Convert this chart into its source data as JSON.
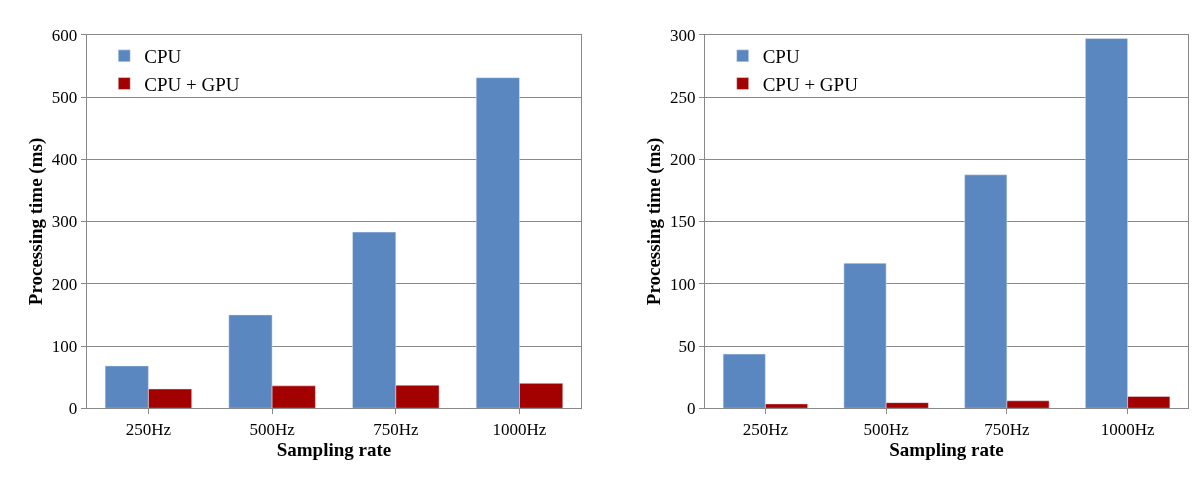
{
  "chart_data": [
    {
      "type": "bar",
      "xlabel": "Sampling rate",
      "ylabel": "Processing time (ms)",
      "categories": [
        "250Hz",
        "500Hz",
        "750Hz",
        "1000Hz"
      ],
      "series": [
        {
          "name": "CPU",
          "color": "#5b87c0",
          "values": [
            68,
            150,
            283,
            531
          ]
        },
        {
          "name": "CPU + GPU",
          "color": "#a30000",
          "values": [
            31,
            36,
            37,
            40
          ]
        }
      ],
      "ylim": [
        0,
        600
      ],
      "yticks": [
        0,
        100,
        200,
        300,
        400,
        500,
        600
      ],
      "grid": "y",
      "legend": "top left"
    },
    {
      "type": "bar",
      "xlabel": "Sampling rate",
      "ylabel": "Processing time (ms)",
      "categories": [
        "250Hz",
        "500Hz",
        "750Hz",
        "1000Hz"
      ],
      "series": [
        {
          "name": "CPU",
          "color": "#5b87c0",
          "values": [
            43.5,
            116.5,
            187.5,
            297
          ]
        },
        {
          "name": "CPU + GPU",
          "color": "#a30000",
          "values": [
            3.5,
            4.5,
            6,
            9.5
          ]
        }
      ],
      "ylim": [
        0,
        300
      ],
      "yticks": [
        0,
        50,
        100,
        150,
        200,
        250,
        300
      ],
      "grid": "y",
      "legend": "top left"
    }
  ]
}
